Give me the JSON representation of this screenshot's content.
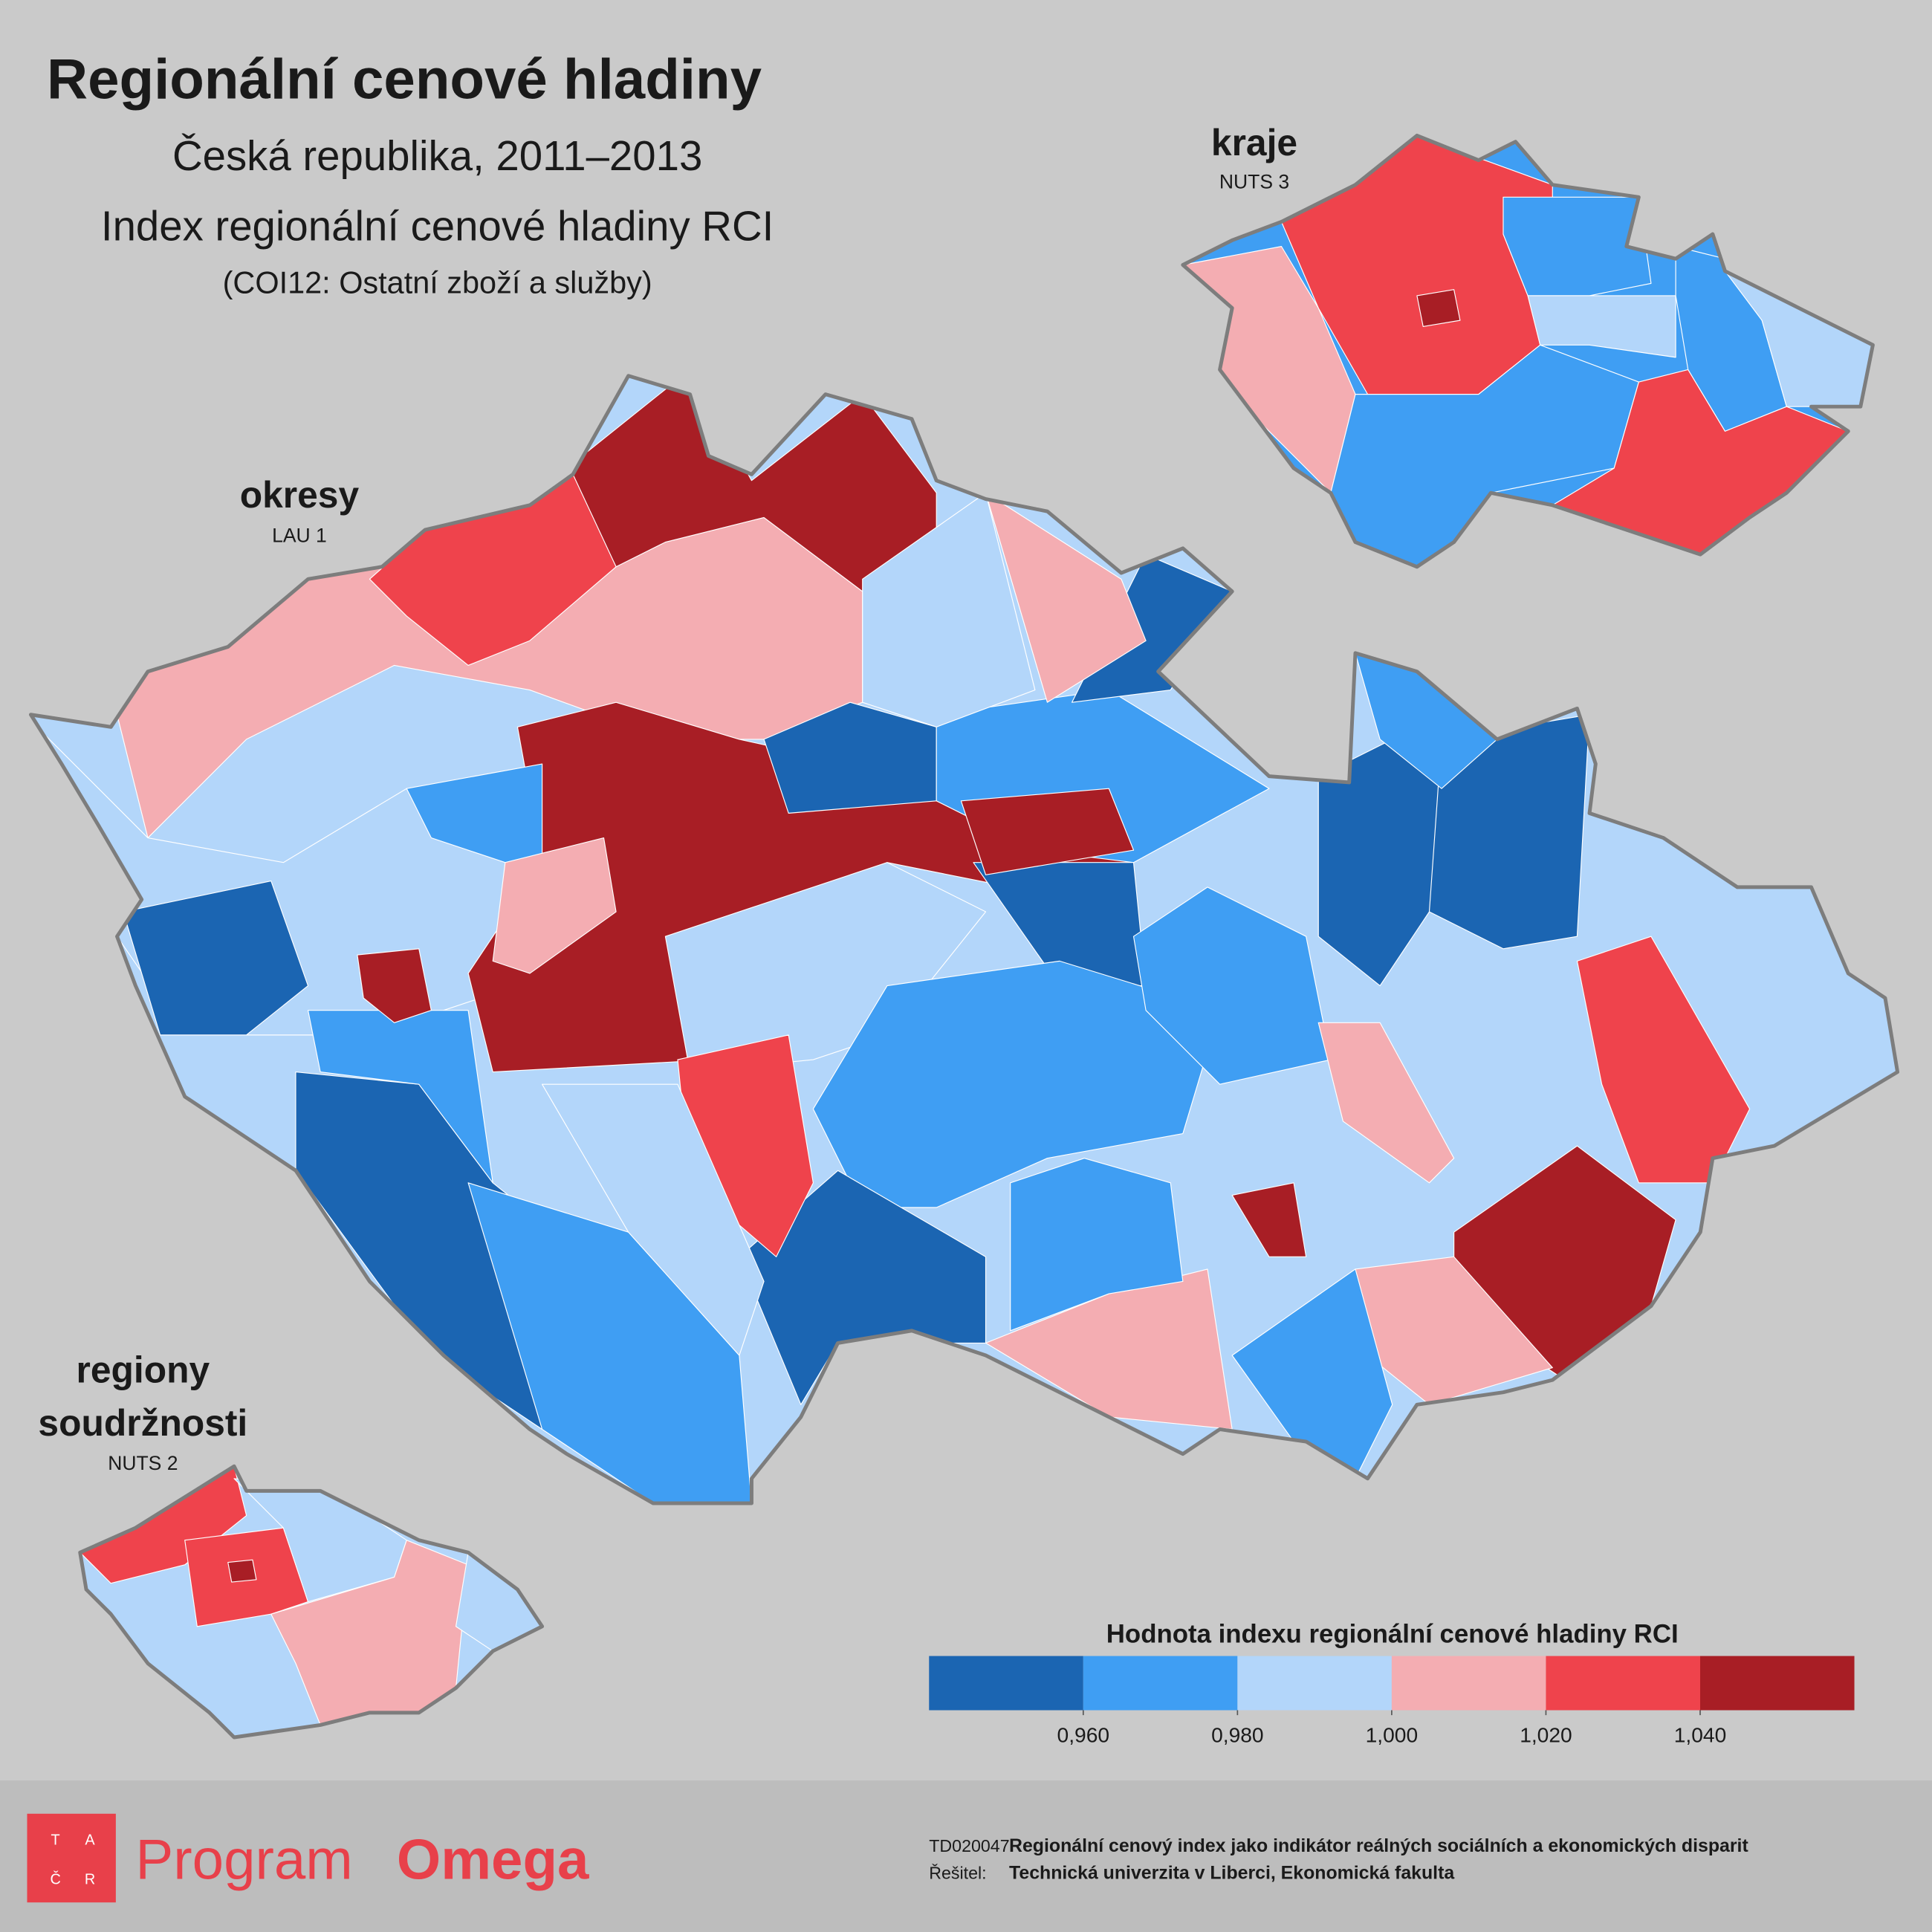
{
  "header": {
    "title": "Regionální cenové hladiny",
    "subtitle": "Česká republika, 2011–2013",
    "index_name": "Index regionální cenové hladiny RCI",
    "category": "(COI12: Ostatní zboží a služby)"
  },
  "maps": {
    "okresy": {
      "label": "okresy",
      "level": "LAU 1"
    },
    "kraje": {
      "label": "kraje",
      "level": "NUTS 3"
    },
    "regiony": {
      "label_lines": [
        "regiony",
        "soudržnosti"
      ],
      "level": "NUTS 2"
    }
  },
  "legend": {
    "title": "Hodnota indexu regionální cenové hladiny RCI",
    "range": [
      0.94,
      1.06
    ],
    "colors": [
      "#1b65b2",
      "#3f9ef3",
      "#b3d6fa",
      "#f4adb2",
      "#ef434c",
      "#a81e25"
    ],
    "ticks": [
      {
        "value": 0.96,
        "label": "0,960"
      },
      {
        "value": 0.98,
        "label": "0,980"
      },
      {
        "value": 1.0,
        "label": "1,000"
      },
      {
        "value": 1.02,
        "label": "1,020"
      },
      {
        "value": 1.04,
        "label": "1,040"
      }
    ]
  },
  "footer": {
    "logo_letters": [
      "T",
      "A",
      "Č",
      "R"
    ],
    "program": "Program",
    "brand": "Omega",
    "project_code": "TD020047:",
    "project_title": "Regionální cenový index jako indikátor reálných sociálních a ekonomických disparit",
    "solver_label": "Řešitel:",
    "solver": "Technická univerzita v Liberci, Ekonomická fakulta"
  }
}
